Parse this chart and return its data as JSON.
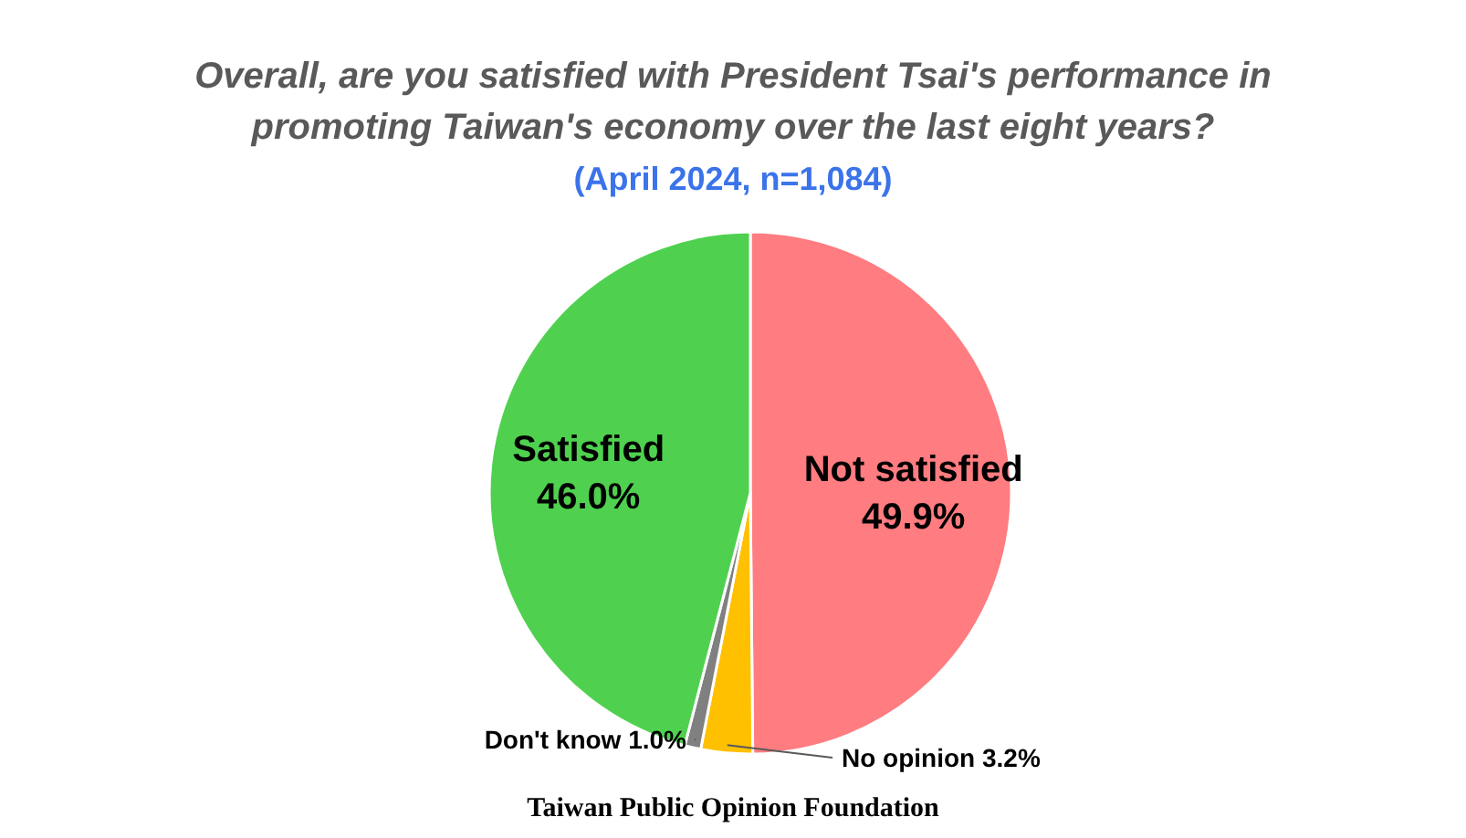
{
  "chart_data": {
    "type": "pie",
    "title": "Overall, are you satisfied with President Tsai's performance in promoting Taiwan's economy over the last eight years?",
    "subtitle": "(April 2024, n=1,084)",
    "categories": [
      "Not satisfied",
      "No opinion",
      "Don't know",
      "Satisfied"
    ],
    "values": [
      49.9,
      3.2,
      1.0,
      46.0
    ],
    "colors": [
      "#ff7c80",
      "#ffc000",
      "#808080",
      "#4fd14f"
    ],
    "value_labels": [
      "49.9%",
      "3.2%",
      "1.0%",
      "46.0%"
    ],
    "annotations": [
      "Taiwan Public Opinion Foundation"
    ]
  }
}
